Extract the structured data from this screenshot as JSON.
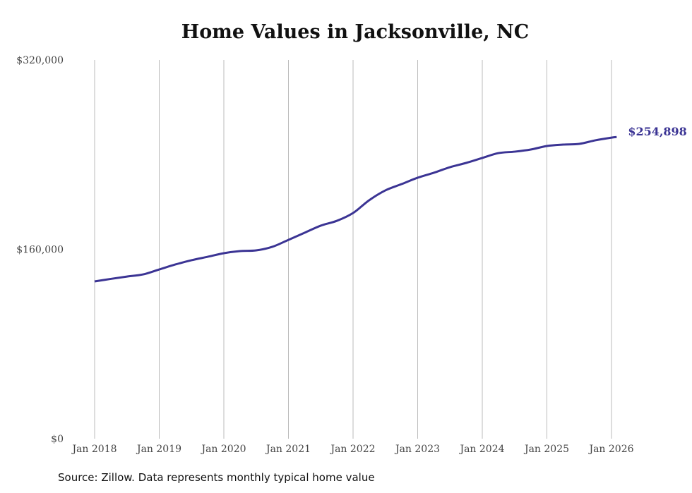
{
  "chart_data": {
    "type": "line",
    "title": "Home Values in Jacksonville, NC",
    "xlabel": "",
    "ylabel": "",
    "ylim": [
      0,
      320000
    ],
    "xlim": [
      2018,
      2026.08
    ],
    "y_ticks": [
      0,
      160000,
      320000
    ],
    "y_tick_labels": [
      "$0",
      "$160,000",
      "$320,000"
    ],
    "x_ticks": [
      2018,
      2019,
      2020,
      2021,
      2022,
      2023,
      2024,
      2025,
      2026
    ],
    "x_tick_labels": [
      "Jan 2018",
      "Jan 2019",
      "Jan 2020",
      "Jan 2021",
      "Jan 2022",
      "Jan 2023",
      "Jan 2024",
      "Jan 2025",
      "Jan 2026"
    ],
    "grid": "vertical",
    "series": [
      {
        "name": "Typical home value",
        "color": "#3b3494",
        "x": [
          2018,
          2018.25,
          2018.5,
          2018.75,
          2019,
          2019.25,
          2019.5,
          2019.75,
          2020,
          2020.25,
          2020.5,
          2020.75,
          2021,
          2021.25,
          2021.5,
          2021.75,
          2022,
          2022.25,
          2022.5,
          2022.75,
          2023,
          2023.25,
          2023.5,
          2023.75,
          2024,
          2024.25,
          2024.5,
          2024.75,
          2025,
          2025.25,
          2025.5,
          2025.75,
          2026,
          2026.08
        ],
        "values": [
          132900,
          135000,
          137000,
          138800,
          143000,
          147200,
          150800,
          153700,
          156700,
          158500,
          159100,
          162100,
          168000,
          174000,
          180000,
          184100,
          190700,
          201500,
          209800,
          215100,
          220500,
          224700,
          229400,
          233000,
          237200,
          241300,
          242500,
          244300,
          247300,
          248500,
          249100,
          252100,
          254400,
          254898
        ]
      }
    ],
    "end_label": "$254,898"
  },
  "source": "Source: Zillow. Data represents monthly typical home value"
}
